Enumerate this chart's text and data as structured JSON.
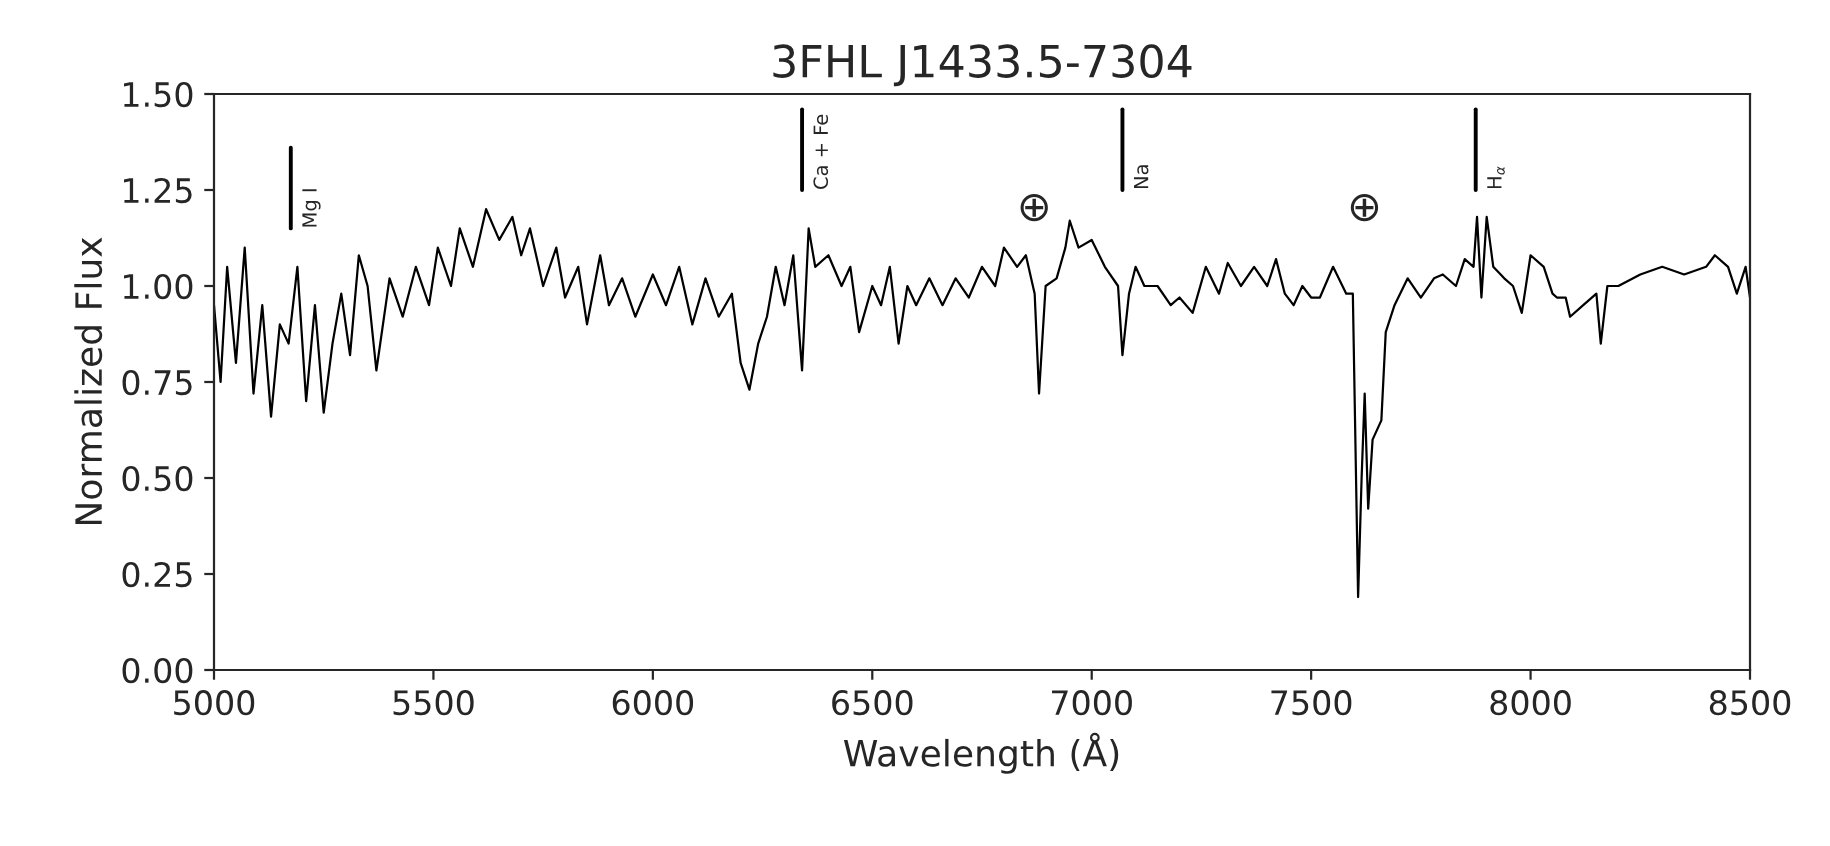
{
  "chart_data": {
    "type": "line",
    "title": "3FHL J1433.5-7304",
    "xlabel": "Wavelength (Å)",
    "ylabel": "Normalized Flux",
    "xlim": [
      5000,
      8500
    ],
    "xticks": [
      5000,
      5500,
      6000,
      6500,
      7000,
      7500,
      8000,
      8500
    ],
    "ylim": [
      0,
      1.5
    ],
    "yticks": [
      {
        "value": 0,
        "label": "0.00"
      },
      {
        "value": 0.25,
        "label": "0.25"
      },
      {
        "value": 0.5,
        "label": "0.50"
      },
      {
        "value": 0.75,
        "label": "0.75"
      },
      {
        "value": 1,
        "label": "1.00"
      },
      {
        "value": 1.25,
        "label": "1.25"
      },
      {
        "value": 1.5,
        "label": "1.50"
      }
    ],
    "grid": false,
    "legend": false,
    "marker": "none",
    "line_style": "solid",
    "series": [
      {
        "color": "#000000",
        "x": [
          5000,
          5015,
          5030,
          5050,
          5070,
          5090,
          5110,
          5130,
          5150,
          5170,
          5190,
          5210,
          5230,
          5250,
          5270,
          5290,
          5310,
          5330,
          5350,
          5370,
          5400,
          5430,
          5460,
          5490,
          5510,
          5540,
          5560,
          5590,
          5620,
          5650,
          5680,
          5700,
          5720,
          5750,
          5780,
          5800,
          5830,
          5850,
          5880,
          5900,
          5930,
          5960,
          6000,
          6030,
          6060,
          6090,
          6120,
          6150,
          6180,
          6200,
          6220,
          6240,
          6260,
          6280,
          6300,
          6320,
          6340,
          6355,
          6370,
          6400,
          6430,
          6450,
          6470,
          6500,
          6520,
          6540,
          6560,
          6580,
          6600,
          6630,
          6660,
          6690,
          6720,
          6750,
          6780,
          6800,
          6830,
          6850,
          6870,
          6880,
          6895,
          6920,
          6940,
          6950,
          6970,
          7000,
          7030,
          7060,
          7070,
          7085,
          7100,
          7120,
          7150,
          7180,
          7200,
          7230,
          7260,
          7290,
          7310,
          7340,
          7370,
          7400,
          7420,
          7440,
          7460,
          7480,
          7500,
          7520,
          7550,
          7580,
          7595,
          7607,
          7615,
          7622,
          7630,
          7640,
          7660,
          7670,
          7690,
          7720,
          7750,
          7780,
          7800,
          7830,
          7850,
          7870,
          7878,
          7888,
          7900,
          7915,
          7940,
          7960,
          7980,
          8000,
          8030,
          8050,
          8060,
          8080,
          8090,
          8120,
          8150,
          8160,
          8175,
          8200,
          8250,
          8300,
          8350,
          8400,
          8420,
          8450,
          8470,
          8490,
          8500
        ],
        "values": [
          0.95,
          0.75,
          1.05,
          0.8,
          1.1,
          0.72,
          0.95,
          0.66,
          0.9,
          0.85,
          1.05,
          0.7,
          0.95,
          0.67,
          0.85,
          0.98,
          0.82,
          1.08,
          1.0,
          0.78,
          1.02,
          0.92,
          1.05,
          0.95,
          1.1,
          1.0,
          1.15,
          1.05,
          1.2,
          1.12,
          1.18,
          1.08,
          1.15,
          1.0,
          1.1,
          0.97,
          1.05,
          0.9,
          1.08,
          0.95,
          1.02,
          0.92,
          1.03,
          0.95,
          1.05,
          0.9,
          1.02,
          0.92,
          0.98,
          0.8,
          0.73,
          0.85,
          0.92,
          1.05,
          0.95,
          1.08,
          0.78,
          1.15,
          1.05,
          1.08,
          1.0,
          1.05,
          0.88,
          1.0,
          0.95,
          1.05,
          0.85,
          1.0,
          0.95,
          1.02,
          0.95,
          1.02,
          0.97,
          1.05,
          1.0,
          1.1,
          1.05,
          1.08,
          0.98,
          0.72,
          1.0,
          1.02,
          1.1,
          1.17,
          1.1,
          1.12,
          1.05,
          1.0,
          0.82,
          0.98,
          1.05,
          1.0,
          1.0,
          0.95,
          0.97,
          0.93,
          1.05,
          0.98,
          1.06,
          1.0,
          1.05,
          1.0,
          1.07,
          0.98,
          0.95,
          1.0,
          0.97,
          0.97,
          1.05,
          0.98,
          0.98,
          0.19,
          0.5,
          0.72,
          0.42,
          0.6,
          0.65,
          0.88,
          0.95,
          1.02,
          0.97,
          1.02,
          1.03,
          1.0,
          1.07,
          1.05,
          1.18,
          0.97,
          1.18,
          1.05,
          1.02,
          1.0,
          0.93,
          1.08,
          1.05,
          0.98,
          0.97,
          0.97,
          0.92,
          0.95,
          0.98,
          0.85,
          1.0,
          1.0,
          1.03,
          1.05,
          1.03,
          1.05,
          1.08,
          1.05,
          0.98,
          1.05,
          0.97
        ]
      },
      {
        "color": "#000000",
        "x": [
          5175,
          5175
        ],
        "values": [
          1.15,
          1.36
        ]
      },
      {
        "color": "#000000",
        "x": [
          6340,
          6340
        ],
        "values": [
          1.25,
          1.46
        ]
      },
      {
        "color": "#000000",
        "x": [
          7070,
          7070
        ],
        "values": [
          1.25,
          1.46
        ]
      },
      {
        "color": "#000000",
        "x": [
          7875,
          7875
        ],
        "values": [
          1.25,
          1.46
        ]
      }
    ],
    "annotations": [
      {
        "text": "Mg I",
        "x": 5175,
        "y": 1.15
      },
      {
        "text": "Ca + Fe",
        "x": 6340,
        "y": 1.25
      },
      {
        "text": "Na",
        "x": 7070,
        "y": 1.25
      },
      {
        "text": "H$_{α}$",
        "x": 7875,
        "y": 1.25
      },
      "⊕",
      "⊕"
    ]
  }
}
